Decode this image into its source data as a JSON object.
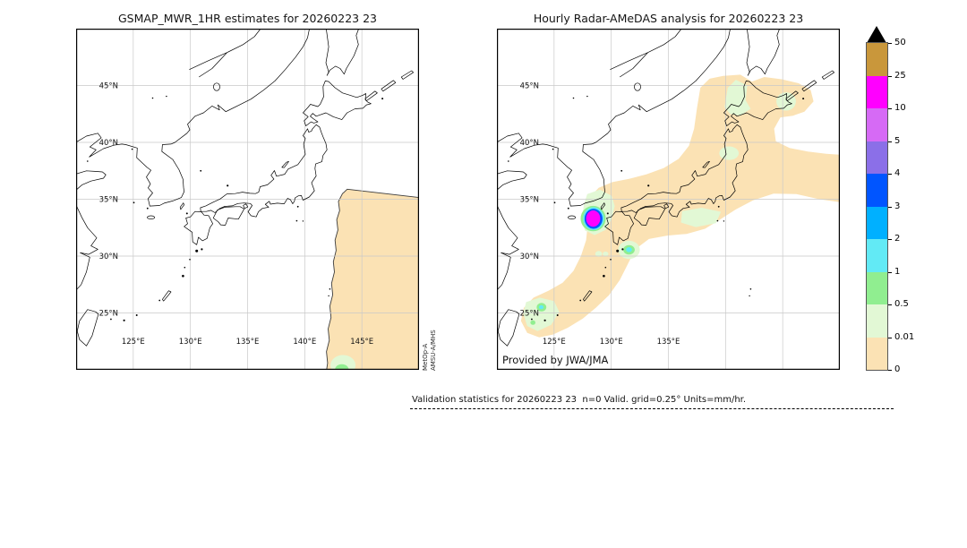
{
  "header": {
    "left_title": "GSMAP_MWR_1HR estimates for 20260223 23",
    "right_title": "Hourly Radar-AMeDAS analysis for 20260223 23"
  },
  "left_panel": {
    "sensor_line1": "MetOp-A",
    "sensor_line2": "AMSU-A/MHS"
  },
  "right_panel": {
    "credit": "Provided by JWA/JMA"
  },
  "axis": {
    "lat_labels": [
      "45°N",
      "40°N",
      "35°N",
      "30°N",
      "25°N"
    ],
    "lat_values": [
      45,
      40,
      35,
      30,
      25
    ],
    "lon_labels": [
      "125°E",
      "130°E",
      "135°E",
      "140°E",
      "145°E"
    ],
    "lon_labels_right": [
      "125°E",
      "130°E",
      "135°E"
    ],
    "lon_values": [
      125,
      130,
      135,
      140,
      145
    ]
  },
  "colorbar": {
    "labels": [
      "50",
      "25",
      "10",
      "5",
      "4",
      "3",
      "2",
      "1",
      "0.5",
      "0.01",
      "0"
    ],
    "colors_top_to_bottom": [
      "#c9973b",
      "#ff00ff",
      "#d66af5",
      "#8b6fe8",
      "#0055ff",
      "#00b0ff",
      "#62eaf5",
      "#90ee90",
      "#e2f8d5",
      "#fbe2b4"
    ],
    "overflow_color": "#000000"
  },
  "footer": {
    "text": "Validation statistics for 20260223 23  n=0 Valid. grid=0.25° Units=mm/hr."
  },
  "chart_data": {
    "type": "heatmap",
    "variable": "hourly precipitation rate",
    "units": "mm/hr",
    "valid_time": "20260223 23",
    "n_valid_points": 0,
    "grid_resolution_deg": 0.25,
    "map_extent": {
      "lon_min": 120,
      "lon_max": 150,
      "lat_min": 20,
      "lat_max": 50
    },
    "grid_interval_deg": 5,
    "color_levels": [
      0,
      0.01,
      0.5,
      1,
      2,
      3,
      4,
      5,
      10,
      25,
      50
    ],
    "colors_low_to_high": [
      "#fbe2b4",
      "#e2f8d5",
      "#90ee90",
      "#62eaf5",
      "#00b0ff",
      "#0055ff",
      "#8b6fe8",
      "#d66af5",
      "#ff00ff",
      "#c9973b"
    ],
    "legend_position": "right",
    "panels": [
      {
        "title": "GSMAP_MWR_1HR estimates for 20260223 23",
        "source": "MetOp-A AMSU-A/MHS",
        "features": [
          {
            "kind": "satellite-swath",
            "value_range_mm_hr": [
              0,
              0.01
            ],
            "approx_lon": [
              141.8,
              150
            ],
            "approx_lat": [
              20,
              35.9
            ],
            "note": "peach swath with dark jagged west edge, fills SE corner of panel"
          },
          {
            "kind": "rain-cell",
            "value_range_mm_hr": [
              0.5,
              1
            ],
            "center_lon": 143.3,
            "center_lat": 20.1,
            "note": "small green cell at bottom of swath with 0.01-0.5 halo"
          }
        ]
      },
      {
        "title": "Hourly Radar-AMeDAS analysis for 20260223 23",
        "source": "JWA/JMA",
        "features": [
          {
            "kind": "precip-band",
            "value_range_mm_hr": [
              0,
              0.01
            ],
            "note": "broad SW-NE band from near Taiwan across the Ryukyus and western/central Japan to Hokkaido, extending east over the Pacific at 35-39N"
          },
          {
            "kind": "rain-cell",
            "value_range_mm_hr": [
              10,
              25
            ],
            "center_lon": 128.4,
            "center_lat": 33.3,
            "note": "intense magenta cell in Korea Strait ringed by 3-4 (blue), 1-2 (cyan), 0.5-1 (green) mm/hr"
          },
          {
            "kind": "rain-cell",
            "value_range_mm_hr": [
              1,
              2
            ],
            "center_lon": 131.6,
            "center_lat": 30.6,
            "note": "cyan core with green halo SE of Kyushu"
          },
          {
            "kind": "rain-cell",
            "value_range_mm_hr": [
              1,
              2
            ],
            "center_lon": 123.9,
            "center_lat": 25.5,
            "note": "cyan core with green halo NE of Taiwan"
          },
          {
            "kind": "light-rain-patches",
            "value_range_mm_hr": [
              0.01,
              0.5
            ],
            "note": "pale-green patches over W/N Hokkaido, N Honshu coast, Korea Strait, SE of Honshu, Kunashiri and the Okinawa area"
          }
        ]
      }
    ]
  }
}
